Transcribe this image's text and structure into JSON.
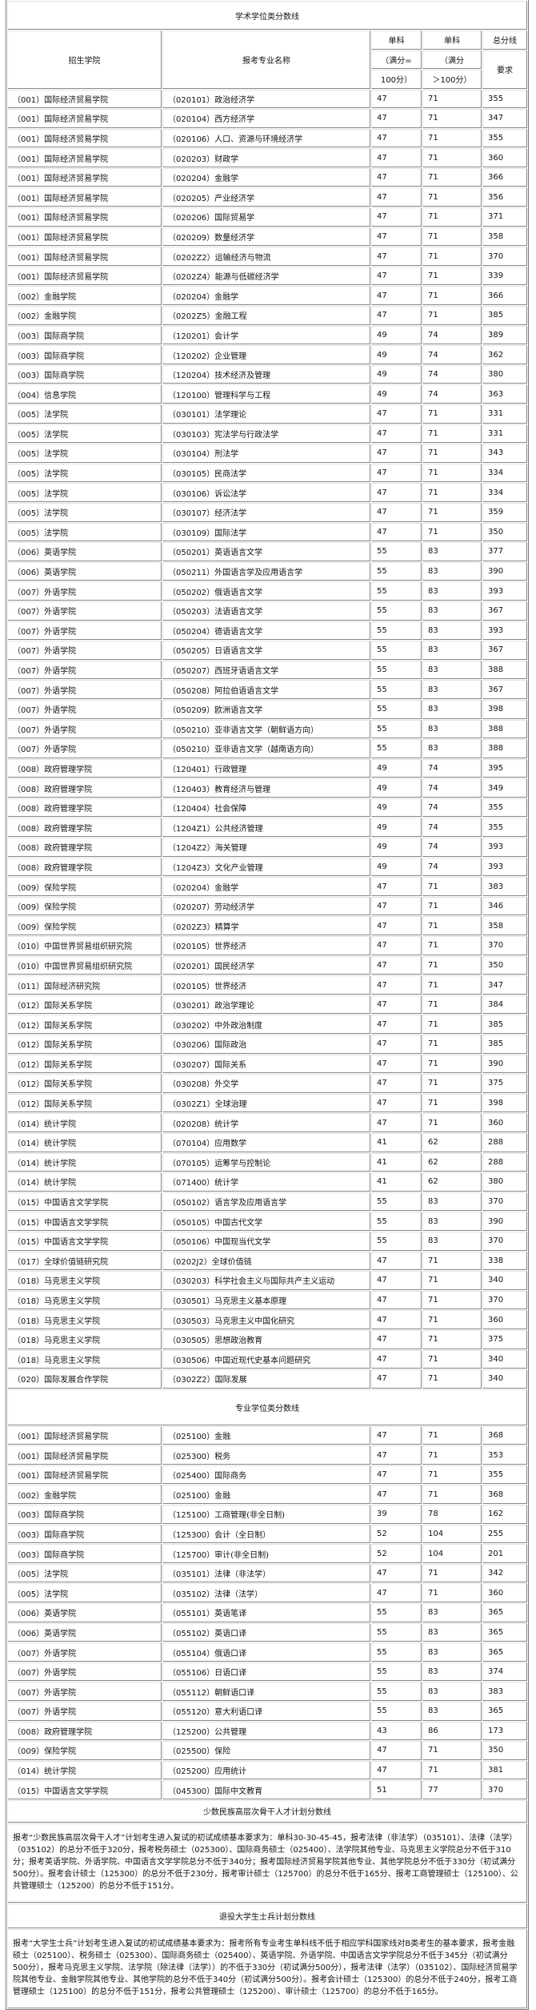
{
  "academic": {
    "title": "学术学位类分数线",
    "headers": {
      "college": "招生学院",
      "major": "报考专业名称",
      "single1_a": "单科",
      "single1_b": "（满分=",
      "single1_c": "100分）",
      "single2_a": "单科",
      "single2_b": "（满分",
      "single2_c": "＞100分）",
      "total_a": "总分线",
      "total_b": "要求"
    },
    "rows": [
      [
        "（001）国际经济贸易学院",
        "（020101）政治经济学",
        "47",
        "71",
        "355"
      ],
      [
        "（001）国际经济贸易学院",
        "（020104）西方经济学",
        "47",
        "71",
        "347"
      ],
      [
        "（001）国际经济贸易学院",
        "（020106）人口、资源与环境经济学",
        "47",
        "71",
        "355"
      ],
      [
        "（001）国际经济贸易学院",
        "（020203）财政学",
        "47",
        "71",
        "360"
      ],
      [
        "（001）国际经济贸易学院",
        "（020204）金融学",
        "47",
        "71",
        "366"
      ],
      [
        "（001）国际经济贸易学院",
        "（020205）产业经济学",
        "47",
        "71",
        "356"
      ],
      [
        "（001）国际经济贸易学院",
        "（020206）国际贸易学",
        "47",
        "71",
        "371"
      ],
      [
        "（001）国际经济贸易学院",
        "（020209）数量经济学",
        "47",
        "71",
        "358"
      ],
      [
        "（001）国际经济贸易学院",
        "（0202Z2）运输经济与物流",
        "47",
        "71",
        "370"
      ],
      [
        "（001）国际经济贸易学院",
        "（0202Z4）能源与低碳经济学",
        "47",
        "71",
        "339"
      ],
      [
        "（002）金融学院",
        "（020204）金融学",
        "47",
        "71",
        "366"
      ],
      [
        "（002）金融学院",
        "（0202Z5）金融工程",
        "47",
        "71",
        "385"
      ],
      [
        "（003）国际商学院",
        "（120201）会计学",
        "49",
        "74",
        "389"
      ],
      [
        "（003）国际商学院",
        "（120202）企业管理",
        "49",
        "74",
        "362"
      ],
      [
        "（003）国际商学院",
        "（120204）技术经济及管理",
        "49",
        "74",
        "380"
      ],
      [
        "（004）信息学院",
        "（120100）管理科学与工程",
        "49",
        "74",
        "363"
      ],
      [
        "（005）法学院",
        "（030101）法学理论",
        "47",
        "71",
        "331"
      ],
      [
        "（005）法学院",
        "（030103）宪法学与行政法学",
        "47",
        "71",
        "331"
      ],
      [
        "（005）法学院",
        "（030104）刑法学",
        "47",
        "71",
        "343"
      ],
      [
        "（005）法学院",
        "（030105）民商法学",
        "47",
        "71",
        "334"
      ],
      [
        "（005）法学院",
        "（030106）诉讼法学",
        "47",
        "71",
        "334"
      ],
      [
        "（005）法学院",
        "（030107）经济法学",
        "47",
        "71",
        "359"
      ],
      [
        "（005）法学院",
        "（030109）国际法学",
        "47",
        "71",
        "350"
      ],
      [
        "（006）英语学院",
        "（050201）英语语言文学",
        "55",
        "83",
        "377"
      ],
      [
        "（006）英语学院",
        "（050211）外国语言学及应用语言学",
        "55",
        "83",
        "390"
      ],
      [
        "（007）外语学院",
        "（050202）俄语语言文学",
        "55",
        "83",
        "393"
      ],
      [
        "（007）外语学院",
        "（050203）法语语言文学",
        "55",
        "83",
        "367"
      ],
      [
        "（007）外语学院",
        "（050204）德语语言文学",
        "55",
        "83",
        "393"
      ],
      [
        "（007）外语学院",
        "（050205）日语语言文学",
        "55",
        "83",
        "367"
      ],
      [
        "（007）外语学院",
        "（050207）西班牙语语言文学",
        "55",
        "83",
        "388"
      ],
      [
        "（007）外语学院",
        "（050208）阿拉伯语语言文学",
        "55",
        "83",
        "367"
      ],
      [
        "（007）外语学院",
        "（050209）欧洲语言文学",
        "55",
        "83",
        "398"
      ],
      [
        "（007）外语学院",
        "（050210）亚非语言文学（朝鲜语方向）",
        "55",
        "83",
        "388"
      ],
      [
        "（007）外语学院",
        "（050210）亚非语言文学（越南语方向）",
        "55",
        "83",
        "388"
      ],
      [
        "（008）政府管理学院",
        "（120401）行政管理",
        "49",
        "74",
        "395"
      ],
      [
        "（008）政府管理学院",
        "（120403）教育经济与管理",
        "49",
        "74",
        "349"
      ],
      [
        "（008）政府管理学院",
        "（120404）社会保障",
        "49",
        "74",
        "355"
      ],
      [
        "（008）政府管理学院",
        "（1204Z1）公共经济管理",
        "49",
        "74",
        "355"
      ],
      [
        "（008）政府管理学院",
        "（1204Z2）海关管理",
        "49",
        "74",
        "393"
      ],
      [
        "（008）政府管理学院",
        "（1204Z3）文化产业管理",
        "49",
        "74",
        "393"
      ],
      [
        "（009）保险学院",
        "（020204）金融学",
        "47",
        "71",
        "383"
      ],
      [
        "（009）保险学院",
        "（020207）劳动经济学",
        "47",
        "71",
        "346"
      ],
      [
        "（009）保险学院",
        "（0202Z3）精算学",
        "47",
        "71",
        "358"
      ],
      [
        "（010）中国世界贸易组织研究院",
        "（020105）世界经济",
        "47",
        "71",
        "370"
      ],
      [
        "（010）中国世界贸易组织研究院",
        "（020201）国民经济学",
        "47",
        "71",
        "350"
      ],
      [
        "（011）国际经济研究院",
        "（020105）世界经济",
        "47",
        "71",
        "347"
      ],
      [
        "（012）国际关系学院",
        "（030201）政治学理论",
        "47",
        "71",
        "384"
      ],
      [
        "（012）国际关系学院",
        "（030202）中外政治制度",
        "47",
        "71",
        "385"
      ],
      [
        "（012）国际关系学院",
        "（030206）国际政治",
        "47",
        "71",
        "385"
      ],
      [
        "（012）国际关系学院",
        "（030207）国际关系",
        "47",
        "71",
        "390"
      ],
      [
        "（012）国际关系学院",
        "（030208）外交学",
        "47",
        "71",
        "375"
      ],
      [
        "（012）国际关系学院",
        "（0302Z1）全球治理",
        "47",
        "71",
        "398"
      ],
      [
        "（014）统计学院",
        "（020208）统计学",
        "47",
        "71",
        "360"
      ],
      [
        "（014）统计学院",
        "（070104）应用数学",
        "41",
        "62",
        "288"
      ],
      [
        "（014）统计学院",
        "（070105）运筹学与控制论",
        "41",
        "62",
        "288"
      ],
      [
        "（014）统计学院",
        "（071400）统计学",
        "41",
        "62",
        "380"
      ],
      [
        "（015）中国语言文学学院",
        "（050102）语言学及应用语言学",
        "55",
        "83",
        "370"
      ],
      [
        "（015）中国语言文学学院",
        "（050105）中国古代文学",
        "55",
        "83",
        "390"
      ],
      [
        "（015）中国语言文学学院",
        "（050106）中国现当代文学",
        "55",
        "83",
        "370"
      ],
      [
        "（017）全球价值链研究院",
        "（0202J2）全球价值链",
        "47",
        "71",
        "338"
      ],
      [
        "（018）马克思主义学院",
        "（030203）科学社会主义与国际共产主义运动",
        "47",
        "71",
        "340"
      ],
      [
        "（018）马克思主义学院",
        "（030501）马克思主义基本原理",
        "47",
        "71",
        "370"
      ],
      [
        "（018）马克思主义学院",
        "（030503）马克思主义中国化研究",
        "47",
        "71",
        "360"
      ],
      [
        "（018）马克思主义学院",
        "（030505）思想政治教育",
        "47",
        "71",
        "375"
      ],
      [
        "（018）马克思主义学院",
        "（030506）中国近现代史基本问题研究",
        "47",
        "71",
        "340"
      ],
      [
        "（020）国际发展合作学院",
        "（0302Z2）国际发展",
        "47",
        "71",
        "340"
      ]
    ]
  },
  "professional": {
    "title": "专业学位类分数线",
    "rows": [
      [
        "（001）国际经济贸易学院",
        "（025100）金融",
        "47",
        "71",
        "368"
      ],
      [
        "（001）国际经济贸易学院",
        "（025300）税务",
        "47",
        "71",
        "353"
      ],
      [
        "（001）国际经济贸易学院",
        "（025400）国际商务",
        "47",
        "71",
        "355"
      ],
      [
        "（002）金融学院",
        "（025100）金融",
        "47",
        "71",
        "368"
      ],
      [
        "（003）国际商学院",
        "（125100）工商管理(非全日制)",
        "39",
        "78",
        "162"
      ],
      [
        "（003）国际商学院",
        "（125300）会计（全日制）",
        "52",
        "104",
        "255"
      ],
      [
        "（003）国际商学院",
        "（125700）审计(非全日制)",
        "52",
        "104",
        "201"
      ],
      [
        "（005）法学院",
        "（035101）法律（非法学）",
        "47",
        "71",
        "342"
      ],
      [
        "（005）法学院",
        "（035102）法律（法学）",
        "47",
        "71",
        "360"
      ],
      [
        "（006）英语学院",
        "（055101）英语笔译",
        "55",
        "83",
        "365"
      ],
      [
        "（006）英语学院",
        "（055102）英语口译",
        "55",
        "83",
        "365"
      ],
      [
        "（007）外语学院",
        "（055104）俄语口译",
        "55",
        "83",
        "365"
      ],
      [
        "（007）外语学院",
        "（055106）日语口译",
        "55",
        "83",
        "374"
      ],
      [
        "（007）外语学院",
        "（055112）朝鲜语口译",
        "55",
        "83",
        "383"
      ],
      [
        "（007）外语学院",
        "（055120）意大利语口译",
        "55",
        "83",
        "365"
      ],
      [
        "（008）政府管理学院",
        "（125200）公共管理",
        "43",
        "86",
        "173"
      ],
      [
        "（009）保险学院",
        "（025500）保险",
        "47",
        "71",
        "350"
      ],
      [
        "（014）统计学院",
        "（025200）应用统计",
        "47",
        "71",
        "381"
      ],
      [
        "（015）中国语言文学学院",
        "（045300）国际中文教育",
        "51",
        "77",
        "370"
      ]
    ]
  },
  "minority": {
    "title": "少数民族高层次骨干人才计划分数线",
    "text": "报考“少数民族高层次骨干人才”计划考生进入复试的初试成绩基本要求为：单科30-30-45-45，报考法律（非法学）（035101）、法律（法学）（035102）的总分不低于320分，报考税务硕士（025300）、国际商务硕士（025400）、法学院其他专业、马克思主义学院总分不低于310分；报考英语学院、外语学院、中国语言文学学院总分不低于340分；报考国际经济贸易学院其他专业、其他学院总分不低于330分（初试满分500分）。报考会计硕士（125300）的总分不低于230分，报考审计硕士（125700）的总分不低于165分、报考工商管理硕士（125100）、公共管理硕士（125200）的总分不低于151分。"
  },
  "veteran": {
    "title": "退役大学生士兵计划分数线",
    "text": "报考“大学生士兵”计划考生进入复试的初试成绩基本要求为：报考所有专业考生单科线不低于相应学科国家线对B类考生的基本要求，报考金融硕士（025100）、税务硕士（025300）、国际商务硕士（025400）、英语学院、外语学院、中国语言文学学院总分不低于345分（初试满分500分），报考马克思主义学院、法学院（除法律（法学））的不低于330分（初试满分500分），报考法律（法学）（035102）、国际经济贸易学院其他专业、金融学院其他专业、其他学院的总分不低于340分（初试满分500分）。报考会计硕士（125300）的总分不低于240分，报考工商管理硕士（125100）的总分不低于151分，报考公共管理硕士（125200）、审计硕士（125700）的总分不低于165分。"
  }
}
